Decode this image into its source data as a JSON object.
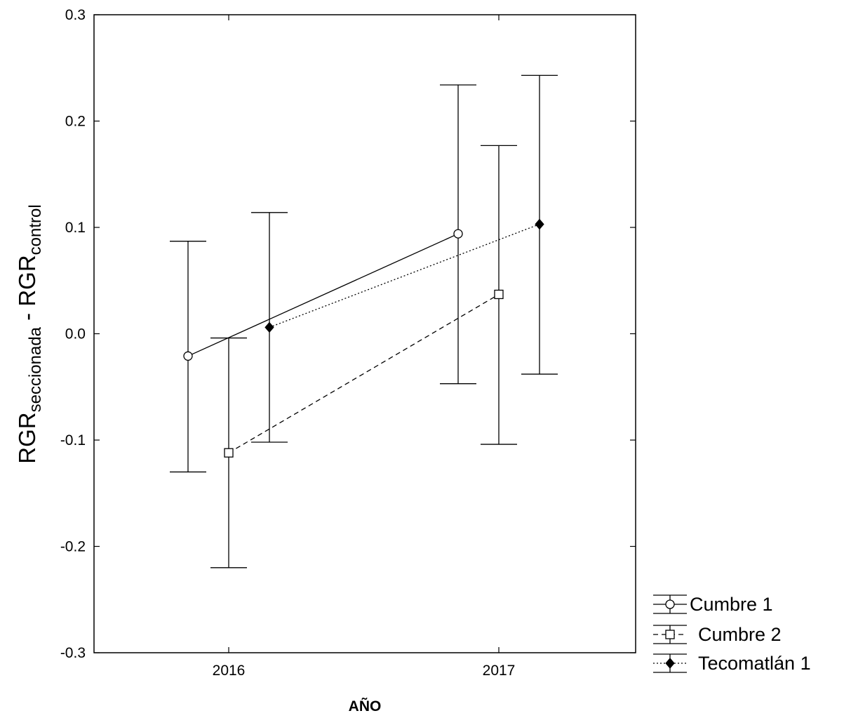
{
  "chart_data": {
    "type": "line",
    "title": "",
    "xlabel": "AÑO",
    "ylabel": {
      "main1": "RGR",
      "sub1": "seccionada",
      "sep": " - ",
      "main2": "RGR",
      "sub2": "control"
    },
    "categories": [
      "2016",
      "2017"
    ],
    "ylim": [
      -0.3,
      0.3
    ],
    "yticks": [
      "-0.3",
      "-0.2",
      "-0.1",
      "0.0",
      "0.1",
      "0.2",
      "0.3"
    ],
    "grid": false,
    "legend_position": "bottom-right, outside plot",
    "series": [
      {
        "name": "Cumbre 1",
        "marker": "open-circle",
        "line": "solid",
        "x": [
          "2016",
          "2017"
        ],
        "values": [
          -0.021,
          0.094
        ],
        "lower": [
          -0.13,
          -0.047
        ],
        "upper": [
          0.087,
          0.234
        ]
      },
      {
        "name": "Cumbre 2",
        "marker": "open-square",
        "line": "dashed",
        "x": [
          "2016",
          "2017"
        ],
        "values": [
          -0.112,
          0.037
        ],
        "lower": [
          -0.22,
          -0.104
        ],
        "upper": [
          -0.004,
          0.177
        ]
      },
      {
        "name": "Tecomatlán 1",
        "marker": "filled-diamond",
        "line": "dotted",
        "x": [
          "2016",
          "2017"
        ],
        "values": [
          0.006,
          0.103
        ],
        "lower": [
          -0.102,
          -0.038
        ],
        "upper": [
          0.114,
          0.243
        ]
      }
    ]
  }
}
